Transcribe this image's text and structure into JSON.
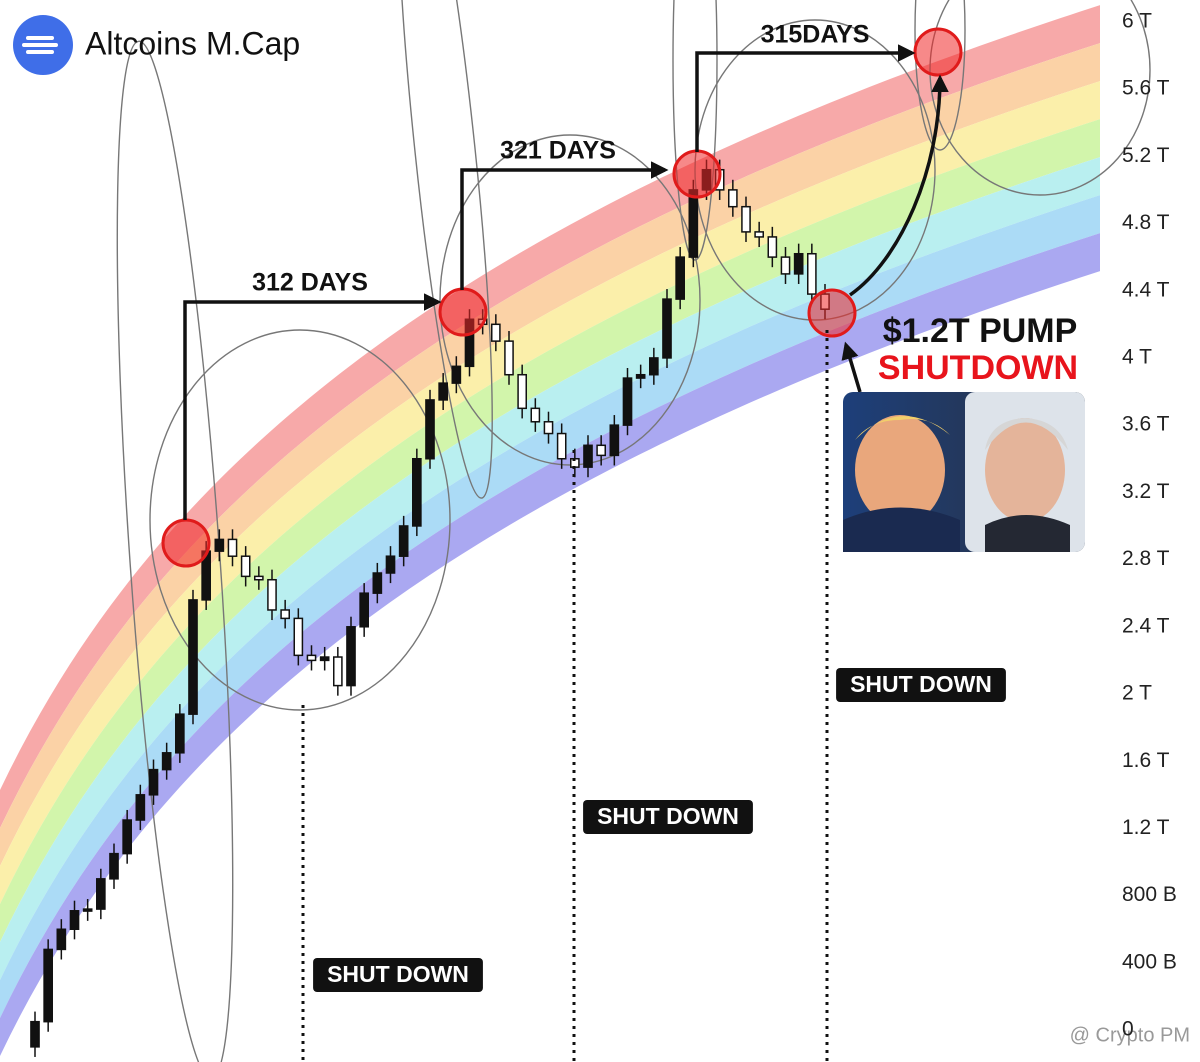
{
  "chart_data": {
    "type": "candlestick",
    "title": "Altcoins M.Cap",
    "watermark": "@ Crypto PM",
    "ylim": [
      -0.19,
      6.13
    ],
    "yticks": [
      0,
      {
        "value": 0.4,
        "label": "400 B"
      },
      {
        "value": 0.8,
        "label": "800 B"
      },
      {
        "value": 1.2,
        "label": "1.2 T"
      },
      {
        "value": 1.6,
        "label": "1.6 T"
      },
      {
        "value": 2,
        "label": "2 T"
      },
      {
        "value": 2.4,
        "label": "2.4 T"
      },
      {
        "value": 2.8,
        "label": "2.8 T"
      },
      {
        "value": 3.2,
        "label": "3.2 T"
      },
      {
        "value": 3.6,
        "label": "3.6 T"
      },
      {
        "value": 4,
        "label": "4 T"
      },
      {
        "value": 4.4,
        "label": "4.4 T"
      },
      {
        "value": 4.8,
        "label": "4.8 T"
      },
      {
        "value": 5.2,
        "label": "5.2 T"
      },
      {
        "value": 5.6,
        "label": "5.6 T"
      },
      {
        "value": 6,
        "label": "6 T"
      }
    ],
    "color": "#111111",
    "open": [
      -0.1,
      0.05,
      0.48,
      0.6,
      0.71,
      0.72,
      0.9,
      1.05,
      1.25,
      1.4,
      1.55,
      1.65,
      1.88,
      2.56,
      2.85,
      2.92,
      2.82,
      2.7,
      2.68,
      2.5,
      2.45,
      2.23,
      2.2,
      2.22,
      2.05,
      2.4,
      2.6,
      2.72,
      2.82,
      3.0,
      3.4,
      3.75,
      3.85,
      3.95,
      4.23,
      4.2,
      4.1,
      3.9,
      3.7,
      3.62,
      3.55,
      3.4,
      3.35,
      3.48,
      3.42,
      3.6,
      3.88,
      3.9,
      4.0,
      4.35,
      4.6,
      5.0,
      5.12,
      5.0,
      4.9,
      4.75,
      4.72,
      4.6,
      4.5,
      4.62,
      4.38
    ],
    "high": [
      0.11,
      0.54,
      0.66,
      0.77,
      0.78,
      0.96,
      1.11,
      1.31,
      1.46,
      1.61,
      1.71,
      1.94,
      2.62,
      2.91,
      2.98,
      2.98,
      2.88,
      2.76,
      2.74,
      2.56,
      2.51,
      2.29,
      2.28,
      2.28,
      2.46,
      2.66,
      2.78,
      2.88,
      3.06,
      3.46,
      3.81,
      3.91,
      4.01,
      4.29,
      4.29,
      4.26,
      4.16,
      3.96,
      3.76,
      3.68,
      3.61,
      3.46,
      3.54,
      3.54,
      3.66,
      3.94,
      3.96,
      4.06,
      4.41,
      4.66,
      5.06,
      5.18,
      5.18,
      5.06,
      4.96,
      4.81,
      4.78,
      4.66,
      4.68,
      4.68,
      4.44
    ],
    "low": [
      -0.16,
      -0.01,
      0.42,
      0.54,
      0.65,
      0.66,
      0.84,
      0.99,
      1.19,
      1.34,
      1.49,
      1.59,
      1.82,
      2.5,
      2.79,
      2.76,
      2.64,
      2.62,
      2.44,
      2.39,
      2.17,
      2.14,
      2.14,
      1.99,
      1.99,
      2.34,
      2.54,
      2.66,
      2.76,
      2.94,
      3.34,
      3.69,
      3.79,
      3.89,
      4.14,
      4.04,
      3.84,
      3.64,
      3.56,
      3.49,
      3.34,
      3.29,
      3.29,
      3.36,
      3.36,
      3.54,
      3.82,
      3.84,
      3.94,
      4.29,
      4.54,
      4.94,
      4.94,
      4.84,
      4.69,
      4.66,
      4.54,
      4.44,
      4.44,
      4.32,
      4.23
    ],
    "close": [
      0.05,
      0.48,
      0.6,
      0.71,
      0.72,
      0.9,
      1.05,
      1.25,
      1.4,
      1.55,
      1.65,
      1.88,
      2.56,
      2.85,
      2.92,
      2.82,
      2.7,
      2.68,
      2.5,
      2.45,
      2.23,
      2.2,
      2.22,
      2.05,
      2.4,
      2.6,
      2.72,
      2.82,
      3.0,
      3.4,
      3.75,
      3.85,
      3.95,
      4.23,
      4.2,
      4.1,
      3.9,
      3.7,
      3.62,
      3.55,
      3.4,
      3.35,
      3.48,
      3.42,
      3.6,
      3.88,
      3.9,
      4.0,
      4.35,
      4.6,
      5.0,
      5.12,
      5.0,
      4.9,
      4.75,
      4.72,
      4.6,
      4.5,
      4.62,
      4.38,
      4.29
    ],
    "annotations": [
      "312 DAYS",
      "321 DAYS",
      "315DAYS",
      "$1.2T PUMP",
      "SHUTDOWN"
    ],
    "shutdown_labels": [
      "SHUT DOWN",
      "SHUT DOWN",
      "SHUT DOWN"
    ]
  }
}
